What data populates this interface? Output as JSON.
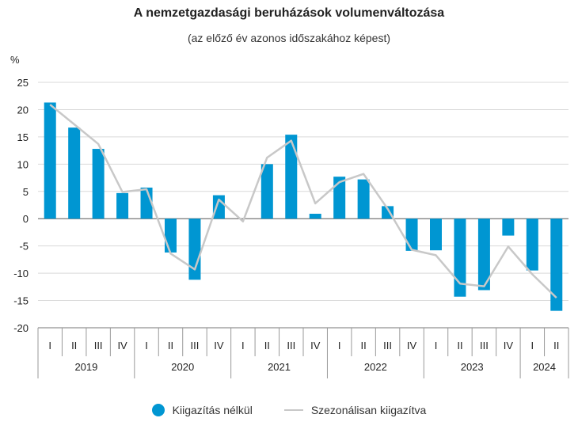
{
  "chart_data": {
    "type": "bar+line",
    "title": "A nemzetgazdasági beruházások volumenváltozása",
    "subtitle": "(az előző év azonos időszakához képest)",
    "ylabel": "%",
    "ylim": [
      -20,
      25
    ],
    "yticks": [
      25,
      20,
      15,
      10,
      5,
      0,
      -5,
      -10,
      -15,
      -20
    ],
    "quarters": [
      "I",
      "II",
      "III",
      "IV",
      "I",
      "II",
      "III",
      "IV",
      "I",
      "II",
      "III",
      "IV",
      "I",
      "II",
      "III",
      "IV",
      "I",
      "II",
      "III",
      "IV",
      "I",
      "II"
    ],
    "years": [
      {
        "label": "2019",
        "count": 4
      },
      {
        "label": "2020",
        "count": 4
      },
      {
        "label": "2021",
        "count": 4
      },
      {
        "label": "2022",
        "count": 4
      },
      {
        "label": "2023",
        "count": 4
      },
      {
        "label": "2024",
        "count": 2
      }
    ],
    "series": [
      {
        "name": "Kiigazítás nélkül",
        "kind": "bar",
        "color": "#0096d2",
        "values": [
          21.3,
          16.7,
          12.8,
          4.7,
          5.7,
          -6.2,
          -11.2,
          4.3,
          0,
          10.0,
          15.4,
          0.9,
          7.7,
          7.2,
          2.3,
          -5.9,
          -5.8,
          -14.3,
          -13.1,
          -3.1,
          -9.5,
          -16.9
        ]
      },
      {
        "name": "Szezonálisan kiigazítva",
        "kind": "line",
        "color": "#c8c8c8",
        "values": [
          20.9,
          17.3,
          13.7,
          4.9,
          5.4,
          -6.4,
          -9.3,
          3.5,
          -0.5,
          11.2,
          14.3,
          2.8,
          6.7,
          8.2,
          1.8,
          -5.7,
          -6.7,
          -11.9,
          -12.4,
          -5.1,
          -10.2,
          -14.5
        ]
      }
    ],
    "grid": true,
    "legend_position": "bottom"
  }
}
